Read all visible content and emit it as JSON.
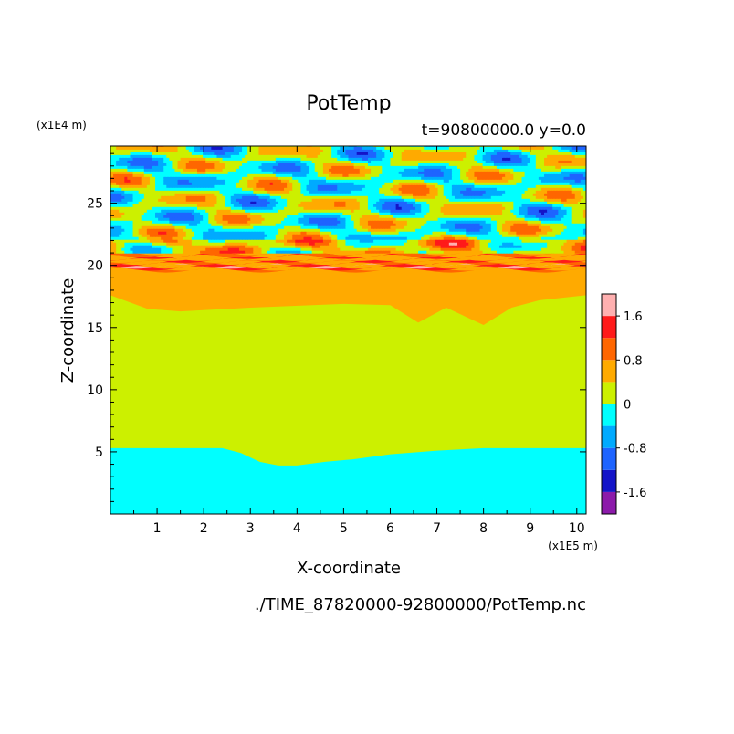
{
  "chart_data": {
    "type": "heatmap",
    "title": "PotTemp",
    "subtitle": "t=90800000.0 y=0.0",
    "xlabel": "X-coordinate",
    "ylabel": "Z-coordinate",
    "x_unit": "(x1E5 m)",
    "y_unit": "(x1E4 m)",
    "file_label": "./TIME_87820000-92800000/PotTemp.nc",
    "xlim": [
      0,
      10.2
    ],
    "ylim": [
      0,
      29.6
    ],
    "x_ticks": [
      1,
      2,
      3,
      4,
      5,
      6,
      7,
      8,
      9,
      10
    ],
    "y_ticks": [
      5,
      10,
      15,
      20,
      25
    ],
    "colorbar": {
      "levels": [
        -2.0,
        -1.6,
        -1.2,
        -0.8,
        -0.4,
        0,
        0.4,
        0.8,
        1.2,
        1.6,
        2.0
      ],
      "tick_labels": [
        "1.6",
        "0.8",
        "0",
        "-0.8",
        "-1.6"
      ],
      "tick_values": [
        1.6,
        0.8,
        0,
        -0.8,
        -1.6
      ],
      "colors": [
        "#8c1aaa",
        "#1414c8",
        "#1e64ff",
        "#00aaff",
        "#00ffff",
        "#ccf000",
        "#ffaa00",
        "#ff6600",
        "#ff1a1a",
        "#ffb0b0"
      ]
    },
    "regions": {
      "lower_layer_value_range": [
        -0.4,
        0
      ],
      "lower_layer_top_profile": {
        "x": [
          0,
          2.4,
          2.8,
          3.2,
          3.6,
          4.0,
          4.6,
          5.2,
          6.0,
          7.0,
          8.0,
          9.0,
          10.2
        ],
        "z": [
          5.3,
          5.3,
          4.9,
          4.2,
          3.9,
          3.9,
          4.2,
          4.4,
          4.8,
          5.1,
          5.3,
          5.3,
          5.3
        ]
      },
      "middle_layer_value_range": [
        0,
        0.4
      ],
      "upper_layer_value_range": [
        0.4,
        0.8
      ],
      "upper_layer_base_profile": {
        "x": [
          0,
          0.8,
          1.5,
          3.0,
          5.0,
          6.0,
          6.6,
          7.2,
          8.0,
          8.6,
          9.2,
          10.2
        ],
        "z": [
          17.6,
          16.5,
          16.3,
          16.6,
          16.9,
          16.8,
          15.4,
          16.6,
          15.2,
          16.6,
          17.2,
          17.6
        ]
      },
      "inversion_band_z": [
        19.6,
        21.0
      ],
      "wave_region_z": [
        21.0,
        29.6
      ]
    }
  }
}
